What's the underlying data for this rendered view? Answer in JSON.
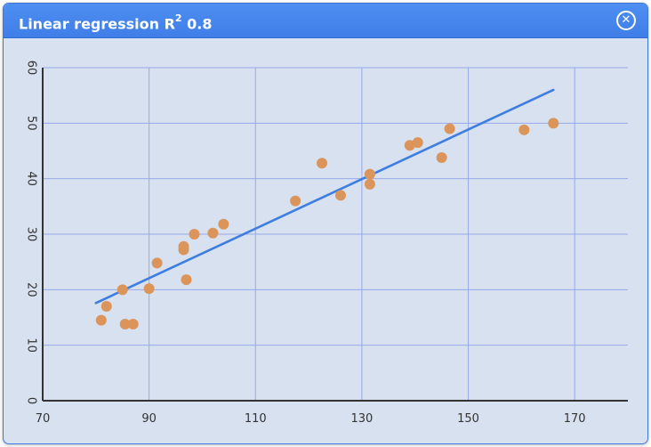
{
  "window": {
    "title_prefix": "Linear regression R",
    "title_superscript": "2",
    "title_suffix": " 0.8",
    "close_glyph": "✕"
  },
  "colors": {
    "titlebar": "#3f7ee7",
    "plot_background": "#d7e1ef",
    "grid": "#97a9ea",
    "axis": "#333333",
    "points": "#db955b",
    "fit_line": "#3d7ee0"
  },
  "chart_data": {
    "type": "scatter",
    "title": "",
    "xlabel": "",
    "ylabel": "",
    "xlim": [
      70,
      180
    ],
    "ylim": [
      0,
      60
    ],
    "x_ticks": [
      70,
      90,
      110,
      130,
      150,
      170
    ],
    "y_ticks": [
      0,
      10,
      20,
      30,
      40,
      50,
      60
    ],
    "grid": true,
    "points": [
      {
        "x": 81,
        "y": 14.5
      },
      {
        "x": 82,
        "y": 17
      },
      {
        "x": 85,
        "y": 20
      },
      {
        "x": 85.5,
        "y": 13.8
      },
      {
        "x": 87,
        "y": 13.8
      },
      {
        "x": 90,
        "y": 20.2
      },
      {
        "x": 91.5,
        "y": 24.8
      },
      {
        "x": 96.5,
        "y": 27.8
      },
      {
        "x": 96.5,
        "y": 27.2
      },
      {
        "x": 97,
        "y": 21.8
      },
      {
        "x": 98.5,
        "y": 30
      },
      {
        "x": 102,
        "y": 30.2
      },
      {
        "x": 104,
        "y": 31.8
      },
      {
        "x": 117.5,
        "y": 36
      },
      {
        "x": 122.5,
        "y": 42.8
      },
      {
        "x": 126,
        "y": 37
      },
      {
        "x": 131.5,
        "y": 40.8
      },
      {
        "x": 131.5,
        "y": 39
      },
      {
        "x": 139,
        "y": 46
      },
      {
        "x": 140.5,
        "y": 46.5
      },
      {
        "x": 145,
        "y": 43.8
      },
      {
        "x": 146.5,
        "y": 49
      },
      {
        "x": 160.5,
        "y": 48.8
      },
      {
        "x": 166,
        "y": 50
      }
    ],
    "fit_line": [
      {
        "x": 80,
        "y": 17.6
      },
      {
        "x": 166,
        "y": 56
      }
    ]
  }
}
